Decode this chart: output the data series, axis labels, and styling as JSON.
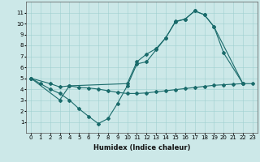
{
  "xlabel": "Humidex (Indice chaleur)",
  "background_color": "#cce8e8",
  "line_color": "#1a6b6b",
  "xlim": [
    -0.5,
    23.5
  ],
  "ylim": [
    0,
    12
  ],
  "xticks": [
    0,
    1,
    2,
    3,
    4,
    5,
    6,
    7,
    8,
    9,
    10,
    11,
    12,
    13,
    14,
    15,
    16,
    17,
    18,
    19,
    20,
    21,
    22,
    23
  ],
  "yticks": [
    1,
    2,
    3,
    4,
    5,
    6,
    7,
    8,
    9,
    10,
    11
  ],
  "line1_x": [
    0,
    1,
    2,
    3,
    4,
    5,
    6,
    7,
    8,
    9,
    10,
    11,
    12,
    13,
    14,
    15,
    16,
    17,
    18,
    19,
    20,
    22
  ],
  "line1_y": [
    5,
    4.5,
    4.0,
    3.6,
    3.0,
    2.2,
    1.5,
    0.85,
    1.3,
    2.7,
    4.3,
    6.3,
    6.5,
    7.6,
    8.7,
    10.2,
    10.4,
    11.15,
    10.8,
    9.7,
    7.3,
    4.5
  ],
  "line2_x": [
    0,
    2,
    3,
    4,
    5,
    6,
    7,
    8,
    9,
    10,
    11,
    12,
    13,
    14,
    15,
    16,
    17,
    18,
    19,
    20,
    21,
    22,
    23
  ],
  "line2_y": [
    5,
    4.5,
    4.2,
    4.3,
    4.15,
    4.1,
    4.0,
    3.85,
    3.7,
    3.6,
    3.6,
    3.65,
    3.75,
    3.85,
    3.95,
    4.05,
    4.15,
    4.25,
    4.35,
    4.4,
    4.45,
    4.5,
    4.5
  ],
  "line3_x": [
    0,
    3,
    4,
    10,
    11,
    12,
    13,
    14,
    15,
    16,
    17,
    18,
    19,
    22
  ],
  "line3_y": [
    5,
    3.0,
    4.3,
    4.5,
    6.5,
    7.2,
    7.7,
    8.7,
    10.15,
    10.4,
    11.15,
    10.8,
    9.7,
    4.5
  ],
  "tick_fontsize": 5.0,
  "xlabel_fontsize": 6.0
}
